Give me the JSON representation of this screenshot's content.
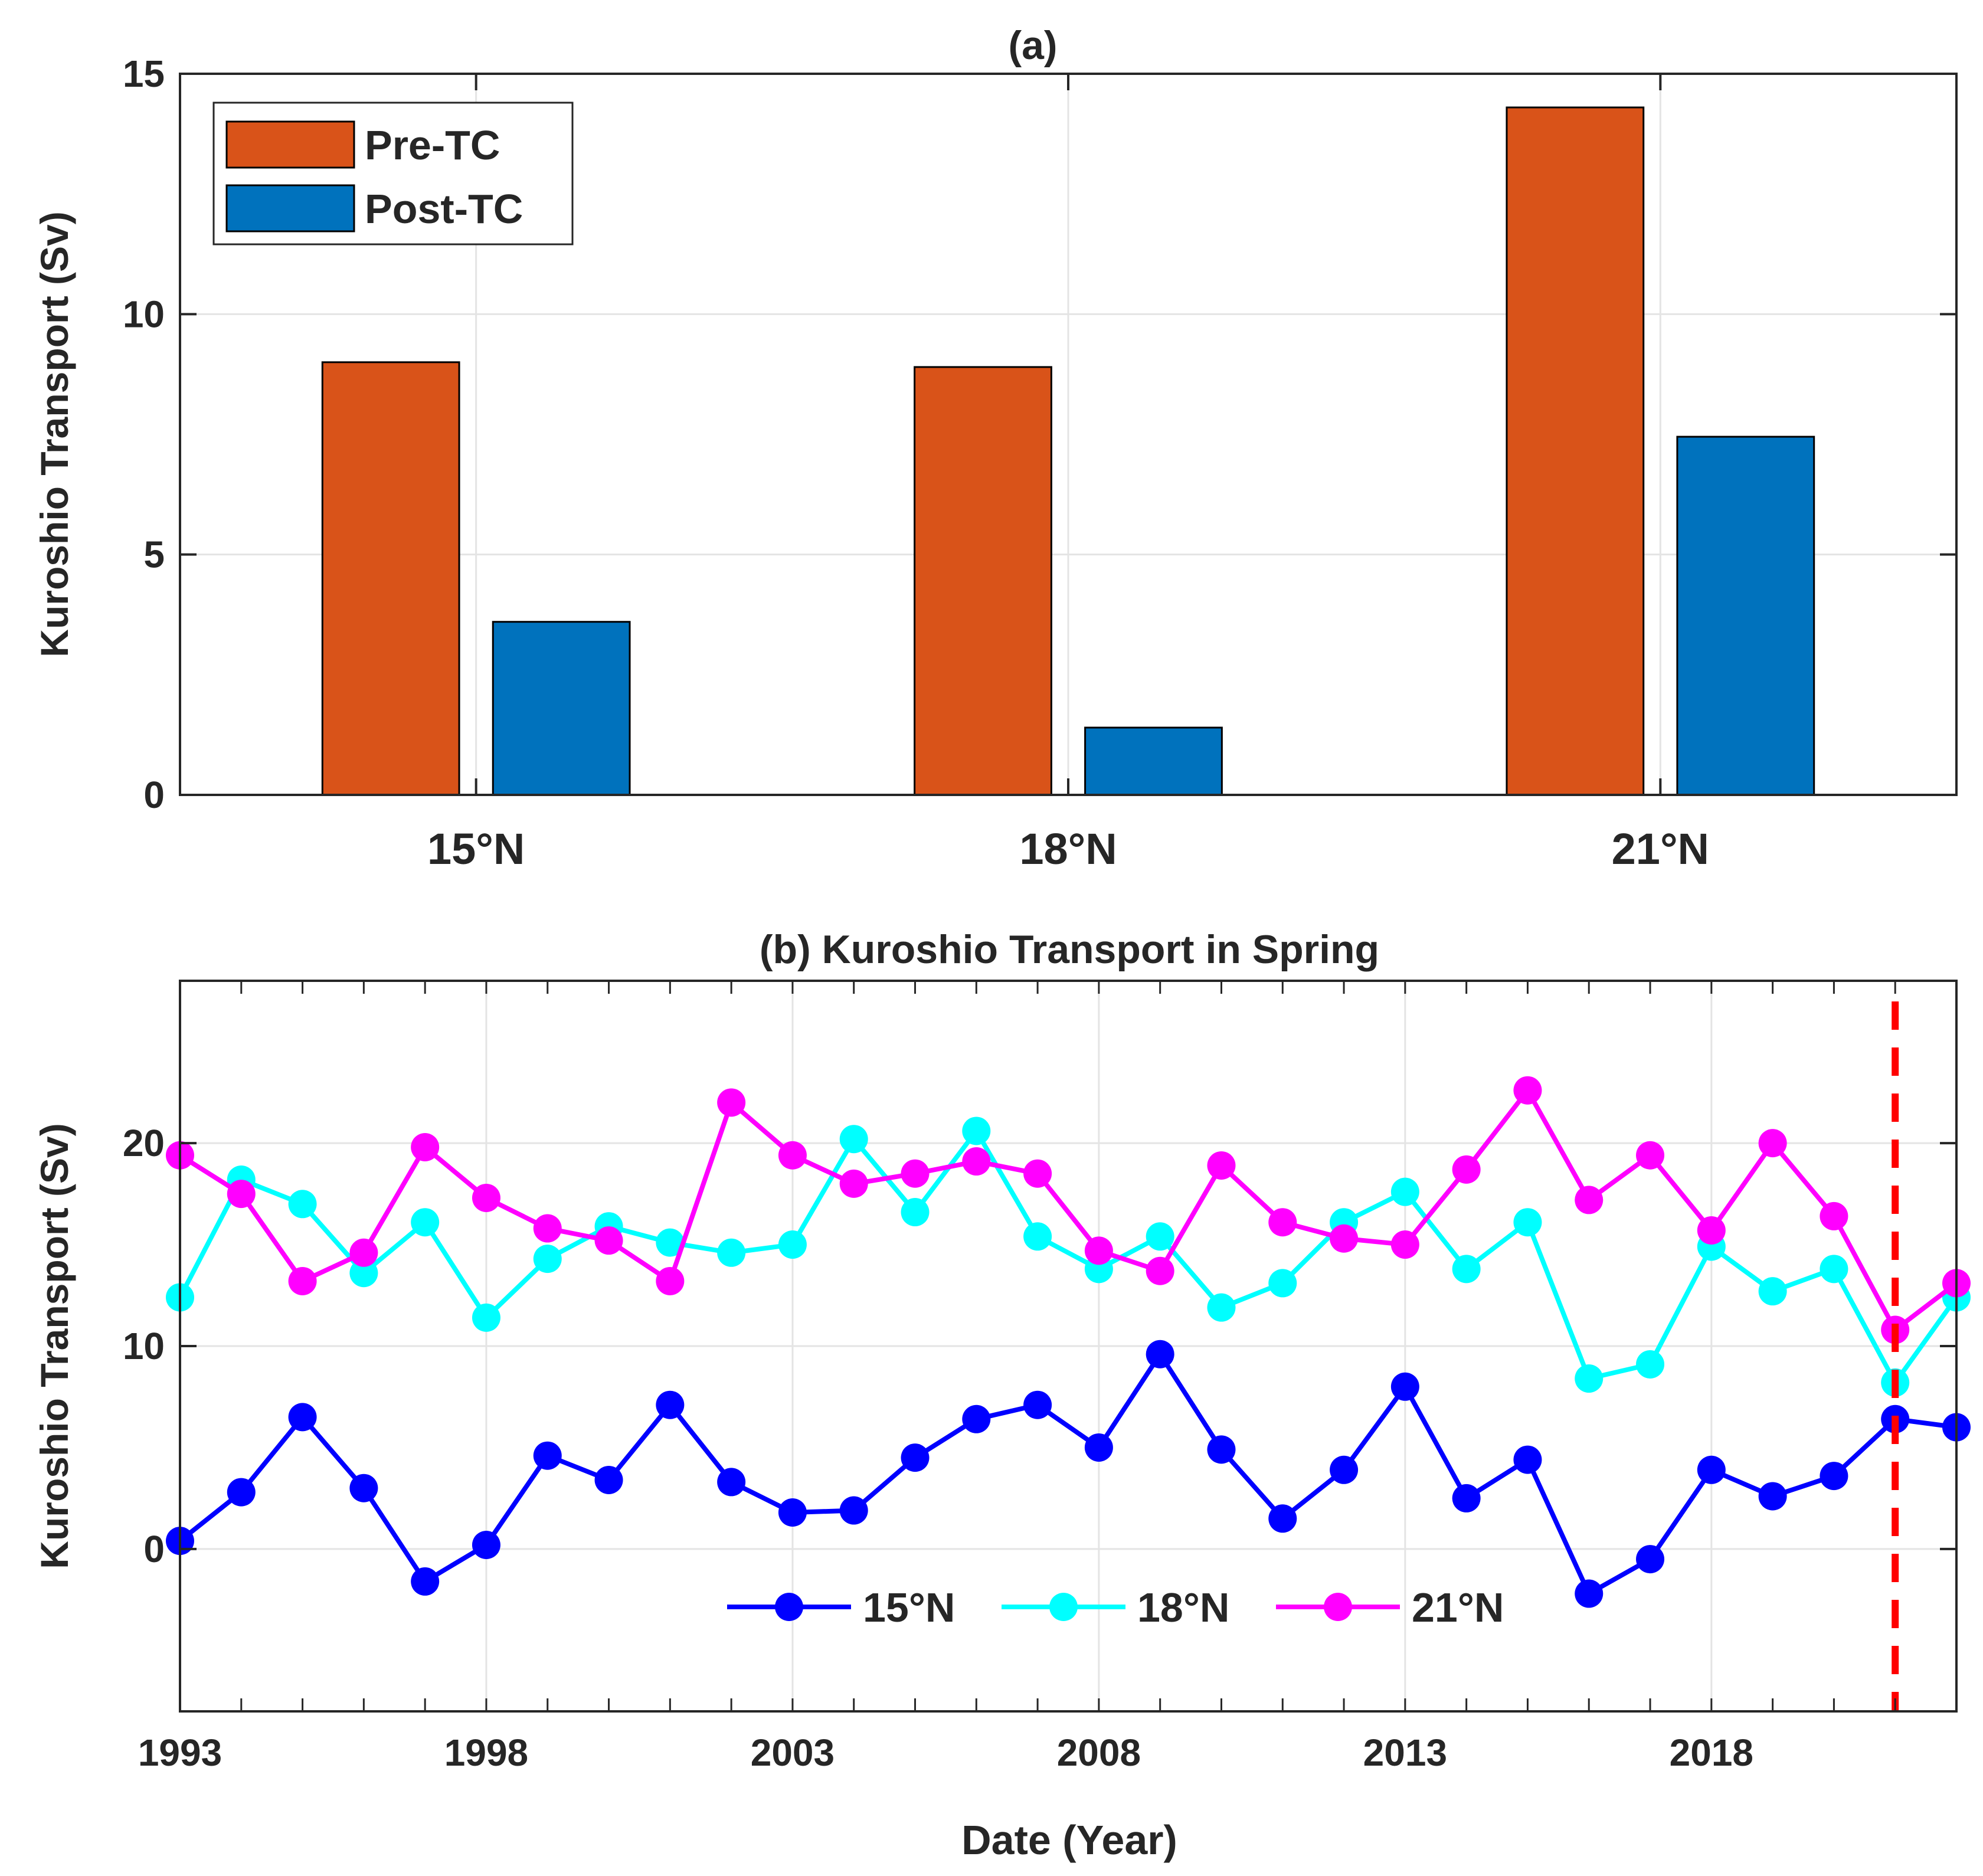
{
  "chart_data": [
    {
      "type": "bar",
      "title": "(a)",
      "xlabel": "",
      "ylabel": "Kuroshio Transport (Sv)",
      "ylim": [
        0,
        15
      ],
      "yticks": [
        "0",
        "5",
        "10",
        "15"
      ],
      "grid": true,
      "legend_position": "top-left",
      "categories": [
        "15°N",
        "18°N",
        "21°N"
      ],
      "series": [
        {
          "name": "Pre-TC",
          "color": "#D95319",
          "values": [
            9.0,
            8.9,
            14.3
          ]
        },
        {
          "name": "Post-TC",
          "color": "#0072BD",
          "values": [
            3.6,
            1.4,
            7.45
          ]
        }
      ]
    },
    {
      "type": "line",
      "title": "(b) Kuroshio Transport in Spring",
      "xlabel": "Date (Year)",
      "ylabel": "Kuroshio Transport (Sv)",
      "xlim": [
        1993,
        2022
      ],
      "ylim": [
        -8,
        28
      ],
      "xticks": [
        "1993",
        "1998",
        "2003",
        "2008",
        "2013",
        "2018"
      ],
      "yticks": [
        "0",
        "10",
        "20"
      ],
      "grid": true,
      "legend_position": "bottom-center",
      "x": [
        1993,
        1994,
        1995,
        1996,
        1997,
        1998,
        1999,
        2000,
        2001,
        2002,
        2003,
        2004,
        2005,
        2006,
        2007,
        2008,
        2009,
        2010,
        2011,
        2012,
        2013,
        2014,
        2015,
        2016,
        2017,
        2018,
        2019,
        2020,
        2021,
        2022
      ],
      "series": [
        {
          "name": "15°N",
          "color": "#0000FF",
          "values": [
            0.4,
            2.8,
            6.5,
            3.0,
            -1.6,
            0.2,
            4.6,
            3.4,
            7.1,
            3.3,
            1.8,
            1.9,
            4.5,
            6.4,
            7.1,
            5.0,
            9.6,
            4.9,
            1.5,
            3.9,
            8.0,
            2.5,
            4.4,
            -2.2,
            -0.5,
            3.9,
            2.6,
            3.6,
            6.4,
            6.0
          ]
        },
        {
          "name": "18°N",
          "color": "#00FFFF",
          "values": [
            12.4,
            18.2,
            17.0,
            13.6,
            16.1,
            11.4,
            14.3,
            15.9,
            15.1,
            14.6,
            15.0,
            20.2,
            16.6,
            20.6,
            15.4,
            13.8,
            15.4,
            11.9,
            13.1,
            16.1,
            17.6,
            13.8,
            16.1,
            8.4,
            9.1,
            14.9,
            12.7,
            13.8,
            8.2,
            12.4
          ]
        },
        {
          "name": "21°N",
          "color": "#FF00FF",
          "values": [
            19.4,
            17.5,
            13.2,
            14.6,
            19.8,
            17.3,
            15.8,
            15.2,
            13.2,
            22.0,
            19.4,
            18.0,
            18.5,
            19.1,
            18.5,
            14.7,
            13.7,
            18.9,
            16.1,
            15.3,
            15.0,
            18.7,
            22.6,
            17.2,
            19.4,
            15.7,
            20.0,
            16.4,
            10.8,
            13.1
          ]
        }
      ],
      "annotations": [
        {
          "type": "vertical-dashed-line",
          "x": 2021,
          "color": "#FF0000"
        }
      ]
    }
  ]
}
